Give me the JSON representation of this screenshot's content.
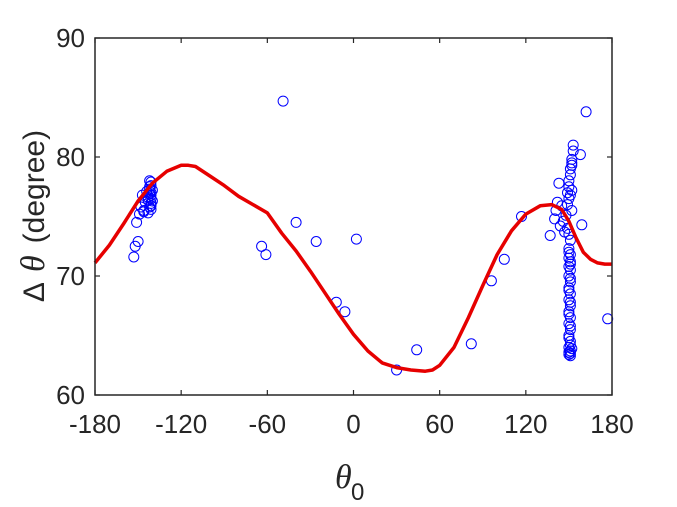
{
  "chart_data": {
    "type": "scatter",
    "xlabel_symbol": "θ",
    "xlabel_subscript": "0",
    "ylabel_prefix": "Δ",
    "ylabel_symbol": "θ",
    "ylabel_suffix": "(degree)",
    "xlim": [
      -180,
      180
    ],
    "ylim": [
      60,
      90
    ],
    "xticks": [
      -180,
      -120,
      -60,
      0,
      60,
      120,
      180
    ],
    "xtick_labels": [
      "-180",
      "-120",
      "-60",
      "0",
      "60",
      "120",
      "180"
    ],
    "yticks": [
      60,
      70,
      80,
      90
    ],
    "ytick_labels": [
      "60",
      "70",
      "80",
      "90"
    ],
    "grid": false,
    "colors": {
      "points": "#0000ff",
      "fit": "#e60000",
      "axis": "#262626"
    },
    "series": [
      {
        "type": "scatter",
        "marker": "open-circle",
        "x": [
          -149,
          -150,
          -152,
          -153,
          -151,
          -146,
          -148,
          -147,
          -146,
          -145,
          -144,
          -143,
          -143,
          -142,
          -142,
          -141,
          -141,
          -141,
          -142,
          -141,
          -140,
          -141,
          -140,
          -141,
          -141,
          -142,
          -143,
          -142,
          -141,
          -64,
          -61,
          -49,
          -40,
          -26,
          -12,
          -6,
          2,
          30,
          44,
          82,
          96,
          105,
          117,
          137,
          140,
          141,
          142,
          143,
          144,
          145,
          146,
          147,
          148,
          149,
          149,
          150,
          150,
          151,
          151,
          152,
          152,
          153,
          150,
          151,
          152,
          149,
          150,
          151,
          152,
          150,
          150,
          151,
          151,
          150,
          151,
          150,
          151,
          150,
          151,
          150,
          151,
          150,
          151,
          150,
          151,
          150,
          151,
          150,
          151,
          150,
          151,
          150,
          151,
          150,
          151,
          150,
          151,
          150,
          151,
          150,
          151,
          151,
          152,
          152,
          153,
          158,
          159,
          162,
          177
        ],
        "y": [
          75.2,
          72.9,
          72.5,
          71.6,
          74.5,
          75.4,
          75.8,
          76.8,
          75.5,
          76.2,
          77.1,
          76.6,
          75.3,
          78.0,
          77.5,
          77.0,
          76.5,
          76.1,
          75.8,
          77.6,
          77.2,
          76.8,
          76.3,
          75.6,
          77.9,
          76.9,
          76.4,
          77.3,
          75.9,
          72.5,
          71.8,
          84.7,
          74.5,
          72.9,
          67.8,
          67.0,
          73.1,
          62.1,
          63.8,
          64.3,
          69.6,
          71.4,
          75.0,
          73.4,
          74.8,
          75.5,
          76.2,
          77.8,
          74.2,
          75.9,
          74.6,
          73.7,
          75.1,
          76.0,
          77.0,
          77.5,
          78.0,
          78.5,
          79.0,
          79.5,
          79.8,
          80.5,
          76.5,
          76.8,
          77.2,
          74.0,
          73.5,
          73.0,
          75.5,
          72.0,
          71.5,
          71.0,
          70.5,
          70.0,
          69.5,
          69.0,
          68.5,
          68.0,
          67.5,
          67.0,
          66.5,
          66.0,
          65.5,
          65.0,
          64.5,
          64.0,
          63.7,
          63.4,
          71.8,
          70.8,
          69.8,
          68.8,
          67.8,
          66.8,
          65.8,
          64.8,
          64.2,
          63.6,
          63.3,
          72.3,
          71.2,
          63.5,
          63.9,
          79.3,
          81.0,
          80.2,
          74.3,
          83.8,
          66.4
        ]
      },
      {
        "type": "line",
        "x": [
          -180,
          -170,
          -160,
          -150,
          -140,
          -130,
          -120,
          -115,
          -110,
          -100,
          -90,
          -80,
          -70,
          -60,
          -50,
          -40,
          -30,
          -20,
          -10,
          0,
          10,
          20,
          30,
          40,
          50,
          55,
          60,
          70,
          80,
          90,
          100,
          110,
          120,
          130,
          138,
          145,
          150,
          155,
          160,
          165,
          170,
          175,
          180
        ],
        "y": [
          71.1,
          72.6,
          74.4,
          76.3,
          77.8,
          78.8,
          79.3,
          79.3,
          79.2,
          78.4,
          77.6,
          76.7,
          76.0,
          75.3,
          73.6,
          72.1,
          70.4,
          68.6,
          66.8,
          65.1,
          63.7,
          62.7,
          62.3,
          62.1,
          62.0,
          62.1,
          62.5,
          64.0,
          66.5,
          69.2,
          71.8,
          73.8,
          75.2,
          75.9,
          76.0,
          75.6,
          74.6,
          73.2,
          72.0,
          71.4,
          71.1,
          71.0,
          71.0
        ]
      }
    ]
  }
}
